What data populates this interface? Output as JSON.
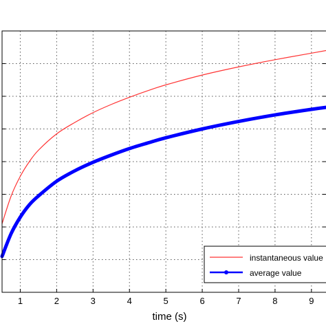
{
  "chart_data": {
    "type": "line",
    "xlabel": "time (s)",
    "ylabel": "",
    "xlim": [
      0.5,
      9.4
    ],
    "ylim": [
      0,
      8
    ],
    "x_ticks": [
      1,
      2,
      3,
      4,
      5,
      6,
      7,
      8,
      9
    ],
    "x_tick_labels": [
      "1",
      "2",
      "3",
      "4",
      "5",
      "6",
      "7",
      "8",
      "9"
    ],
    "y_ticks": [
      1,
      2,
      3,
      4,
      5,
      6,
      7,
      8
    ],
    "grid": true,
    "legend_position": "bottom-right",
    "series": [
      {
        "name": "instantaneous value",
        "color": "#ff3333",
        "line_style": "thin",
        "x": [
          0.5,
          0.75,
          1.0,
          1.25,
          1.5,
          2.0,
          2.5,
          3.0,
          3.5,
          4.0,
          4.5,
          5.0,
          6.0,
          7.0,
          8.0,
          9.0,
          9.4
        ],
        "y": [
          2.1,
          2.95,
          3.55,
          4.0,
          4.35,
          4.85,
          5.2,
          5.5,
          5.75,
          5.97,
          6.17,
          6.35,
          6.65,
          6.9,
          7.12,
          7.32,
          7.4
        ]
      },
      {
        "name": "average value",
        "color": "#0000ff",
        "line_style": "thick-with-dot-markers",
        "x": [
          0.5,
          0.75,
          1.0,
          1.25,
          1.5,
          2.0,
          2.5,
          3.0,
          3.5,
          4.0,
          4.5,
          5.0,
          6.0,
          7.0,
          8.0,
          9.0,
          9.4
        ],
        "y": [
          1.1,
          1.8,
          2.3,
          2.68,
          2.95,
          3.4,
          3.72,
          3.98,
          4.2,
          4.4,
          4.57,
          4.73,
          5.0,
          5.23,
          5.43,
          5.6,
          5.66
        ]
      }
    ]
  }
}
